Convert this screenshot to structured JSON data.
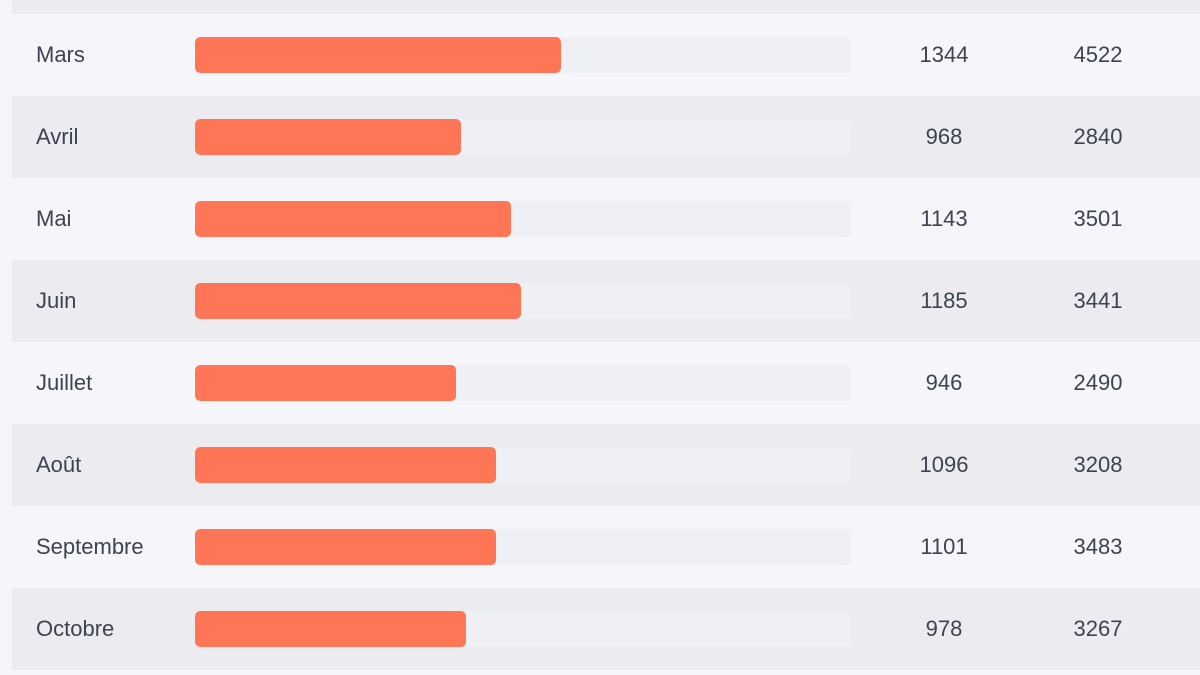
{
  "colors": {
    "bar_fill": "#ff7656",
    "bar_track": "#eff0f4",
    "row_light": "#f5f5fa",
    "row_dark": "#ebebf0",
    "text": "#3d4351"
  },
  "rows": [
    {
      "month": "Mars",
      "value1": "1344",
      "value2": "4522",
      "bar_fraction": 0.558
    },
    {
      "month": "Avril",
      "value1": "968",
      "value2": "2840",
      "bar_fraction": 0.405
    },
    {
      "month": "Mai",
      "value1": "1143",
      "value2": "3501",
      "bar_fraction": 0.482
    },
    {
      "month": "Juin",
      "value1": "1185",
      "value2": "3441",
      "bar_fraction": 0.497
    },
    {
      "month": "Juillet",
      "value1": "946",
      "value2": "2490",
      "bar_fraction": 0.398
    },
    {
      "month": "Août",
      "value1": "1096",
      "value2": "3208",
      "bar_fraction": 0.459
    },
    {
      "month": "Septembre",
      "value1": "1101",
      "value2": "3483",
      "bar_fraction": 0.459
    },
    {
      "month": "Octobre",
      "value1": "978",
      "value2": "3267",
      "bar_fraction": 0.413
    }
  ]
}
